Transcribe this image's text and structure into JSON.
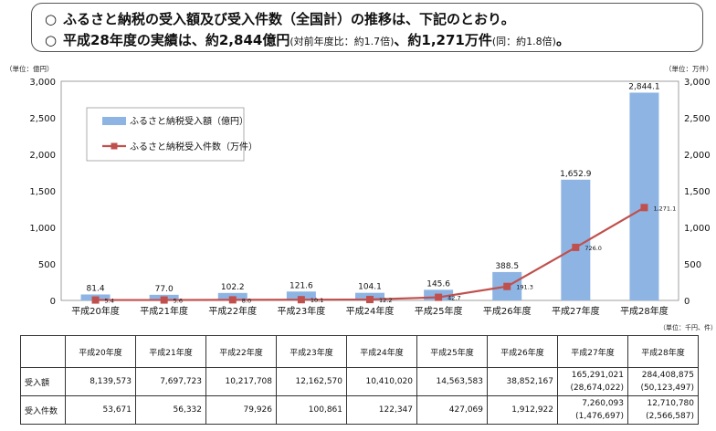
{
  "headline": {
    "line1": "ふるさと納税の受入額及び受入件数（全国計）の推移は、下記のとおり。",
    "line2_main": "平成28年度の実績は、約2,844億円",
    "line2_small1": "(対前年度比：約1.7倍)",
    "line2_mid": "、約1,271万件",
    "line2_small2": "(同：約1.8倍)",
    "line2_end": "。",
    "bullet": "○"
  },
  "chart_data": {
    "type": "bar",
    "categories": [
      "平成20年度",
      "平成21年度",
      "平成22年度",
      "平成23年度",
      "平成24年度",
      "平成25年度",
      "平成26年度",
      "平成27年度",
      "平成28年度"
    ],
    "series": [
      {
        "name": "ふるさと納税受入額（億円）",
        "type": "bar",
        "axis": "left",
        "values": [
          81.4,
          77.0,
          102.2,
          121.6,
          104.1,
          145.6,
          388.5,
          1652.9,
          2844.1
        ],
        "labels": [
          "81.4",
          "77.0",
          "102.2",
          "121.6",
          "104.1",
          "145.6",
          "388.5",
          "1,652.9",
          "2,844.1"
        ]
      },
      {
        "name": "ふるさと納税受入件数（万件）",
        "type": "line",
        "axis": "right",
        "values": [
          5.4,
          5.6,
          8.0,
          10.1,
          12.2,
          42.7,
          191.3,
          726.0,
          1271.1
        ],
        "labels": [
          "5.4",
          "5.6",
          "8.0",
          "10.1",
          "12.2",
          "42.7",
          "191.3",
          "726.0",
          "1,271.1"
        ]
      }
    ],
    "left_unit": "（単位：億円）",
    "right_unit": "（単位：万件）",
    "ylim": [
      0,
      3000
    ],
    "ticks": [
      "0",
      "500",
      "1,000",
      "1,500",
      "2,000",
      "2,500",
      "3,000"
    ],
    "tick_values": [
      0,
      500,
      1000,
      1500,
      2000,
      2500,
      3000
    ],
    "legend_position": "top-left",
    "colors": {
      "bar": "#8EB4E3",
      "line": "#C0504D"
    }
  },
  "table": {
    "unit": "（単位：千円、件）",
    "headers": [
      "平成20年度",
      "平成21年度",
      "平成22年度",
      "平成23年度",
      "平成24年度",
      "平成25年度",
      "平成26年度",
      "平成27年度",
      "平成28年度"
    ],
    "rows": [
      {
        "label": "受入額",
        "values": [
          "8,139,573",
          "7,697,723",
          "10,217,708",
          "12,162,570",
          "10,410,020",
          "14,563,583",
          "38,852,167",
          "165,291,021",
          "284,408,875"
        ],
        "sub": [
          "",
          "",
          "",
          "",
          "",
          "",
          "",
          "(28,674,022)",
          "(50,123,497)"
        ]
      },
      {
        "label": "受入件数",
        "values": [
          "53,671",
          "56,332",
          "79,926",
          "100,861",
          "122,347",
          "427,069",
          "1,912,922",
          "7,260,093",
          "12,710,780"
        ],
        "sub": [
          "",
          "",
          "",
          "",
          "",
          "",
          "",
          "(1,476,697)",
          "(2,566,587)"
        ]
      }
    ]
  }
}
